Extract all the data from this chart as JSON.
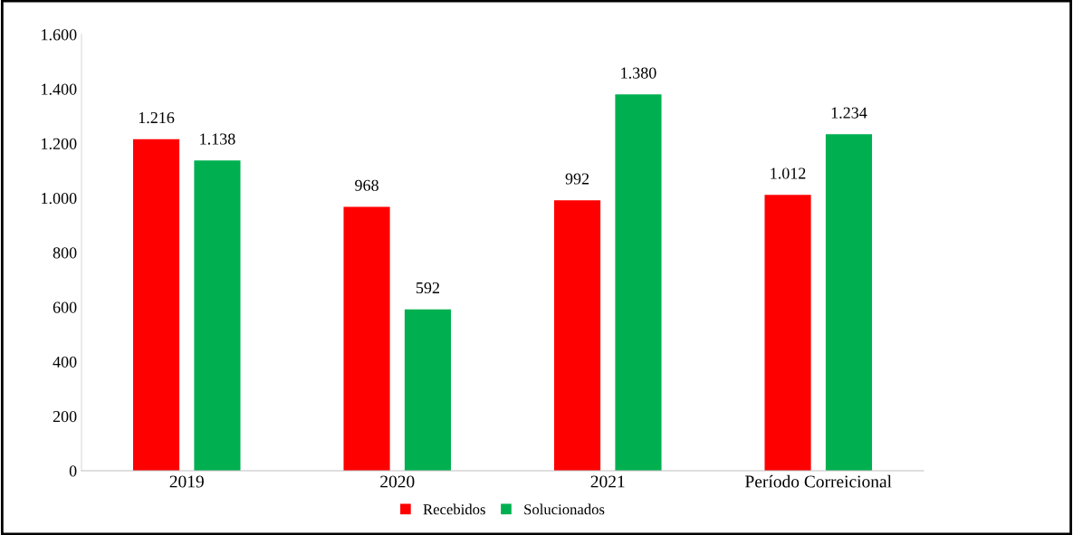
{
  "chart_data": {
    "type": "bar",
    "categories": [
      "2019",
      "2020",
      "2021",
      "Período Correicional"
    ],
    "series": [
      {
        "name": "Recebidos",
        "color": "#ff0000",
        "values": [
          1216,
          968,
          992,
          1012
        ],
        "value_labels": [
          "1.216",
          "968",
          "992",
          "1.012"
        ]
      },
      {
        "name": "Solucionados",
        "color": "#00b050",
        "values": [
          1138,
          592,
          1380,
          1234
        ],
        "value_labels": [
          "1.138",
          "592",
          "1.380",
          "1.234"
        ]
      }
    ],
    "ylim": [
      0,
      1600
    ],
    "yticks": [
      0,
      200,
      400,
      600,
      800,
      {
        "value": 1000,
        "label": "1.000"
      },
      {
        "value": 1200,
        "label": "1.200"
      },
      {
        "value": 1400,
        "label": "1.400"
      },
      {
        "value": 1600,
        "label": "1.600"
      }
    ],
    "grid": false,
    "legend": "bottom"
  }
}
